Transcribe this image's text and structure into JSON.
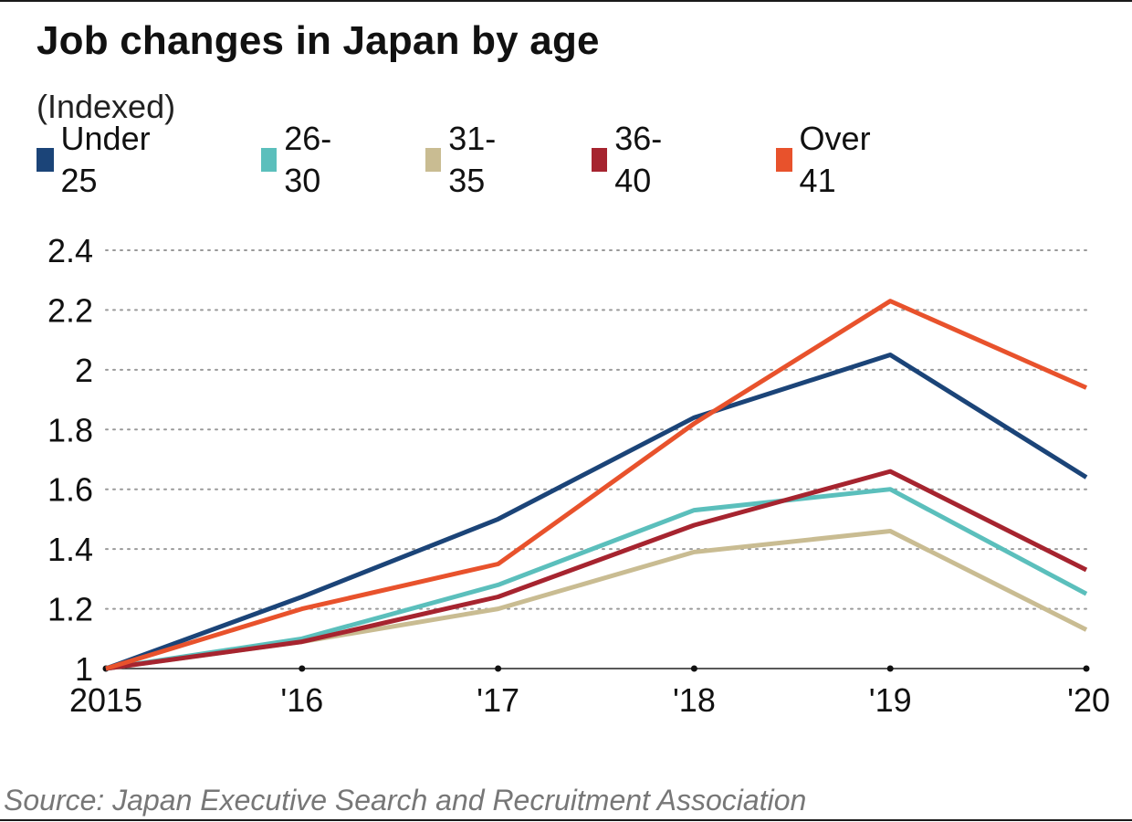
{
  "title": "Job changes in Japan by age",
  "subtitle": "(Indexed)",
  "source": "Source: Japan Executive Search and Recruitment Association",
  "chart_data": {
    "type": "line",
    "title": "Job changes in Japan by age",
    "subtitle": "(Indexed)",
    "xlabel": "",
    "ylabel": "",
    "categories": [
      "2015",
      "'16",
      "'17",
      "'18",
      "'19",
      "'20"
    ],
    "y_ticks": [
      "1",
      "1.2",
      "1.4",
      "1.6",
      "1.8",
      "2",
      "2.2",
      "2.4"
    ],
    "ylim": [
      1,
      2.4
    ],
    "grid": "horizontal dotted",
    "legend_position": "top",
    "series": [
      {
        "name": "Under 25",
        "color": "#1b4478",
        "values": [
          1,
          1.24,
          1.5,
          1.84,
          2.05,
          1.64
        ]
      },
      {
        "name": "26-30",
        "color": "#5bbfbc",
        "values": [
          1,
          1.1,
          1.28,
          1.53,
          1.6,
          1.25
        ]
      },
      {
        "name": "31-35",
        "color": "#c9bc92",
        "values": [
          1,
          1.09,
          1.2,
          1.39,
          1.46,
          1.13
        ]
      },
      {
        "name": "36-40",
        "color": "#a6242f",
        "values": [
          1,
          1.09,
          1.24,
          1.48,
          1.66,
          1.33
        ]
      },
      {
        "name": "Over 41",
        "color": "#e8522c",
        "values": [
          1,
          1.2,
          1.35,
          1.82,
          2.23,
          1.94
        ]
      }
    ]
  }
}
